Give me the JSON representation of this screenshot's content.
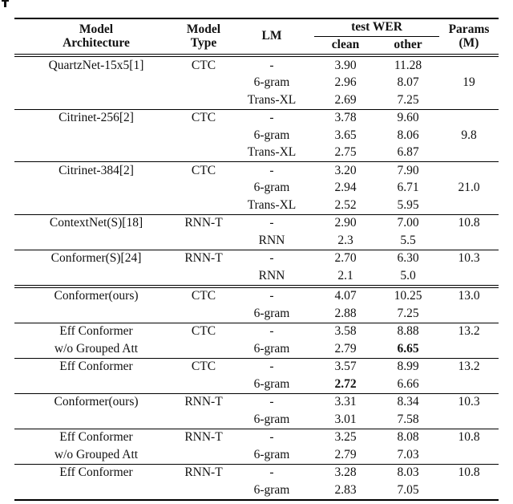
{
  "table": {
    "header": {
      "arch": [
        "Model",
        "Architecture"
      ],
      "type": [
        "Model",
        "Type"
      ],
      "lm": "LM",
      "wer_group": "test WER",
      "wer_sub": [
        "clean",
        "other"
      ],
      "params": [
        "Params",
        "(M)"
      ]
    },
    "sections": [
      {
        "rows": [
          {
            "arch": "QuartzNet-15x5[1]",
            "type": "CTC",
            "lm": "-",
            "clean": "3.90",
            "other": "11.28",
            "params": ""
          },
          {
            "arch": "",
            "type": "",
            "lm": "6-gram",
            "clean": "2.96",
            "other": "8.07",
            "params": "19"
          },
          {
            "arch": "",
            "type": "",
            "lm": "Trans-XL",
            "clean": "2.69",
            "other": "7.25",
            "params": ""
          }
        ]
      },
      {
        "rows": [
          {
            "arch": "Citrinet-256[2]",
            "type": "CTC",
            "lm": "-",
            "clean": "3.78",
            "other": "9.60",
            "params": ""
          },
          {
            "arch": "",
            "type": "",
            "lm": "6-gram",
            "clean": "3.65",
            "other": "8.06",
            "params": "9.8"
          },
          {
            "arch": "",
            "type": "",
            "lm": "Trans-XL",
            "clean": "2.75",
            "other": "6.87",
            "params": ""
          }
        ]
      },
      {
        "rows": [
          {
            "arch": "Citrinet-384[2]",
            "type": "CTC",
            "lm": "-",
            "clean": "3.20",
            "other": "7.90",
            "params": ""
          },
          {
            "arch": "",
            "type": "",
            "lm": "6-gram",
            "clean": "2.94",
            "other": "6.71",
            "params": "21.0"
          },
          {
            "arch": "",
            "type": "",
            "lm": "Trans-XL",
            "clean": "2.52",
            "other": "5.95",
            "params": ""
          }
        ]
      },
      {
        "rows": [
          {
            "arch": "ContextNet(S)[18]",
            "type": "RNN-T",
            "lm": "-",
            "clean": "2.90",
            "other": "7.00",
            "params": "10.8"
          },
          {
            "arch": "",
            "type": "",
            "lm": "RNN",
            "clean": "2.3",
            "other": "5.5",
            "params": ""
          }
        ]
      },
      {
        "rows": [
          {
            "arch": "Conformer(S)[24]",
            "type": "RNN-T",
            "lm": "-",
            "clean": "2.70",
            "other": "6.30",
            "params": "10.3"
          },
          {
            "arch": "",
            "type": "",
            "lm": "RNN",
            "clean": "2.1",
            "other": "5.0",
            "params": ""
          }
        ]
      },
      {
        "double_rule_before": true,
        "rows": [
          {
            "arch": "Conformer(ours)",
            "type": "CTC",
            "lm": "-",
            "clean": "4.07",
            "other": "10.25",
            "params": "13.0"
          },
          {
            "arch": "",
            "type": "",
            "lm": "6-gram",
            "clean": "2.88",
            "other": "7.25",
            "params": ""
          }
        ]
      },
      {
        "rows": [
          {
            "arch": "Eff Conformer",
            "type": "CTC",
            "lm": "-",
            "clean": "3.58",
            "other": "8.88",
            "params": "13.2"
          },
          {
            "arch": "w/o Grouped Att",
            "type": "",
            "lm": "6-gram",
            "clean": "2.79",
            "other": "6.65",
            "other_bold": true,
            "params": ""
          }
        ]
      },
      {
        "rows": [
          {
            "arch": "Eff Conformer",
            "type": "CTC",
            "lm": "-",
            "clean": "3.57",
            "other": "8.99",
            "params": "13.2"
          },
          {
            "arch": "",
            "type": "",
            "lm": "6-gram",
            "clean": "2.72",
            "clean_bold": true,
            "other": "6.66",
            "params": ""
          }
        ]
      },
      {
        "rows": [
          {
            "arch": "Conformer(ours)",
            "type": "RNN-T",
            "lm": "-",
            "clean": "3.31",
            "other": "8.34",
            "params": "10.3"
          },
          {
            "arch": "",
            "type": "",
            "lm": "6-gram",
            "clean": "3.01",
            "other": "7.58",
            "params": ""
          }
        ]
      },
      {
        "rows": [
          {
            "arch": "Eff Conformer",
            "type": "RNN-T",
            "lm": "-",
            "clean": "3.25",
            "other": "8.08",
            "params": "10.8"
          },
          {
            "arch": "w/o Grouped Att",
            "type": "",
            "lm": "6-gram",
            "clean": "2.79",
            "other": "7.03",
            "params": ""
          }
        ]
      },
      {
        "rows": [
          {
            "arch": "Eff Conformer",
            "type": "RNN-T",
            "lm": "-",
            "clean": "3.28",
            "other": "8.03",
            "params": "10.8"
          },
          {
            "arch": "",
            "type": "",
            "lm": "6-gram",
            "clean": "2.83",
            "other": "7.05",
            "params": ""
          }
        ]
      }
    ]
  }
}
